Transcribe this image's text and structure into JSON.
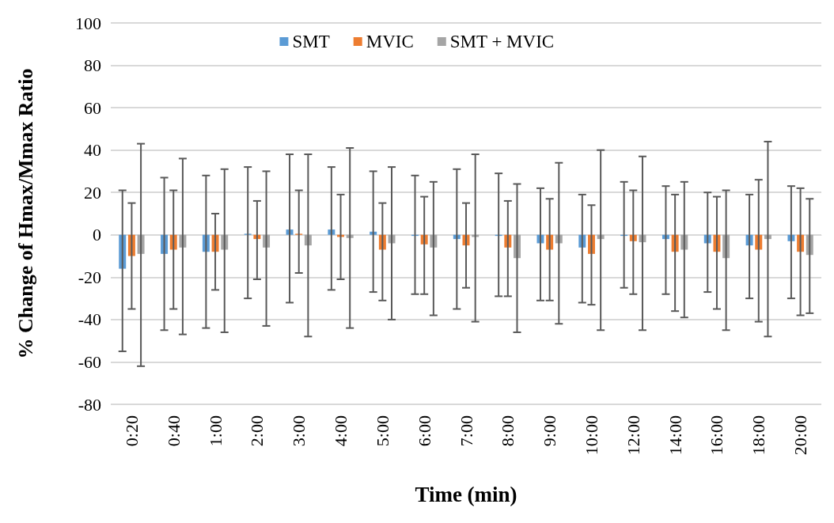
{
  "chart_data": {
    "type": "bar",
    "xlabel": "Time (min)",
    "ylabel": "% Change of Hmax/Mmax Ratio",
    "categories": [
      "0:20",
      "0:40",
      "1:00",
      "2:00",
      "3:00",
      "4:00",
      "5:00",
      "6:00",
      "7:00",
      "8:00",
      "9:00",
      "10:00",
      "12:00",
      "14:00",
      "16:00",
      "18:00",
      "20:00"
    ],
    "series": [
      {
        "name": "SMT",
        "color": "#5b9bd5",
        "values": [
          -16,
          -9,
          -8,
          0.5,
          2.5,
          2.5,
          1.5,
          -0.5,
          -2,
          -0.5,
          -4,
          -6,
          -0.5,
          -2,
          -4,
          -5,
          -3
        ],
        "errors": [
          [
            -55,
            21
          ],
          [
            -45,
            27
          ],
          [
            -44,
            28
          ],
          [
            -30,
            32
          ],
          [
            -32,
            38
          ],
          [
            -26,
            32
          ],
          [
            -27,
            30
          ],
          [
            -28,
            28
          ],
          [
            -35,
            31
          ],
          [
            -29,
            29
          ],
          [
            -31,
            22
          ],
          [
            -32,
            19
          ],
          [
            -25,
            25
          ],
          [
            -28,
            23
          ],
          [
            -27,
            20
          ],
          [
            -30,
            19
          ],
          [
            -30,
            23
          ]
        ]
      },
      {
        "name": "MVIC",
        "color": "#ed7d31",
        "values": [
          -10,
          -7,
          -8,
          -2,
          0.5,
          -1,
          -7,
          -4.5,
          -5,
          -6,
          -7,
          -9,
          -3,
          -8,
          -8,
          -7,
          -8
        ],
        "errors": [
          [
            -35,
            15
          ],
          [
            -35,
            21
          ],
          [
            -26,
            10
          ],
          [
            -21,
            16
          ],
          [
            -18,
            21
          ],
          [
            -21,
            19
          ],
          [
            -31,
            15
          ],
          [
            -28,
            18
          ],
          [
            -25,
            15
          ],
          [
            -29,
            16
          ],
          [
            -31,
            17
          ],
          [
            -33,
            14
          ],
          [
            -28,
            21
          ],
          [
            -36,
            19
          ],
          [
            -35,
            18
          ],
          [
            -41,
            26
          ],
          [
            -38,
            22
          ]
        ]
      },
      {
        "name": "SMT + MVIC",
        "color": "#a5a5a5",
        "values": [
          -9,
          -6,
          -7,
          -6,
          -5,
          -1.5,
          -4,
          -6,
          -1,
          -11,
          -4,
          -2,
          -3.5,
          -7,
          -11,
          -2,
          -9.5
        ],
        "errors": [
          [
            -62,
            43
          ],
          [
            -47,
            36
          ],
          [
            -46,
            31
          ],
          [
            -43,
            30
          ],
          [
            -48,
            38
          ],
          [
            -44,
            41
          ],
          [
            -40,
            32
          ],
          [
            -38,
            25
          ],
          [
            -41,
            38
          ],
          [
            -46,
            24
          ],
          [
            -42,
            34
          ],
          [
            -45,
            40
          ],
          [
            -45,
            37
          ],
          [
            -39,
            25
          ],
          [
            -45,
            21
          ],
          [
            -48,
            44
          ],
          [
            -37,
            17
          ]
        ]
      }
    ],
    "ylim": [
      -80,
      100
    ],
    "yticks": [
      -80,
      -60,
      -40,
      -20,
      0,
      20,
      40,
      60,
      80,
      100
    ],
    "grid": "y",
    "legend": "top"
  }
}
